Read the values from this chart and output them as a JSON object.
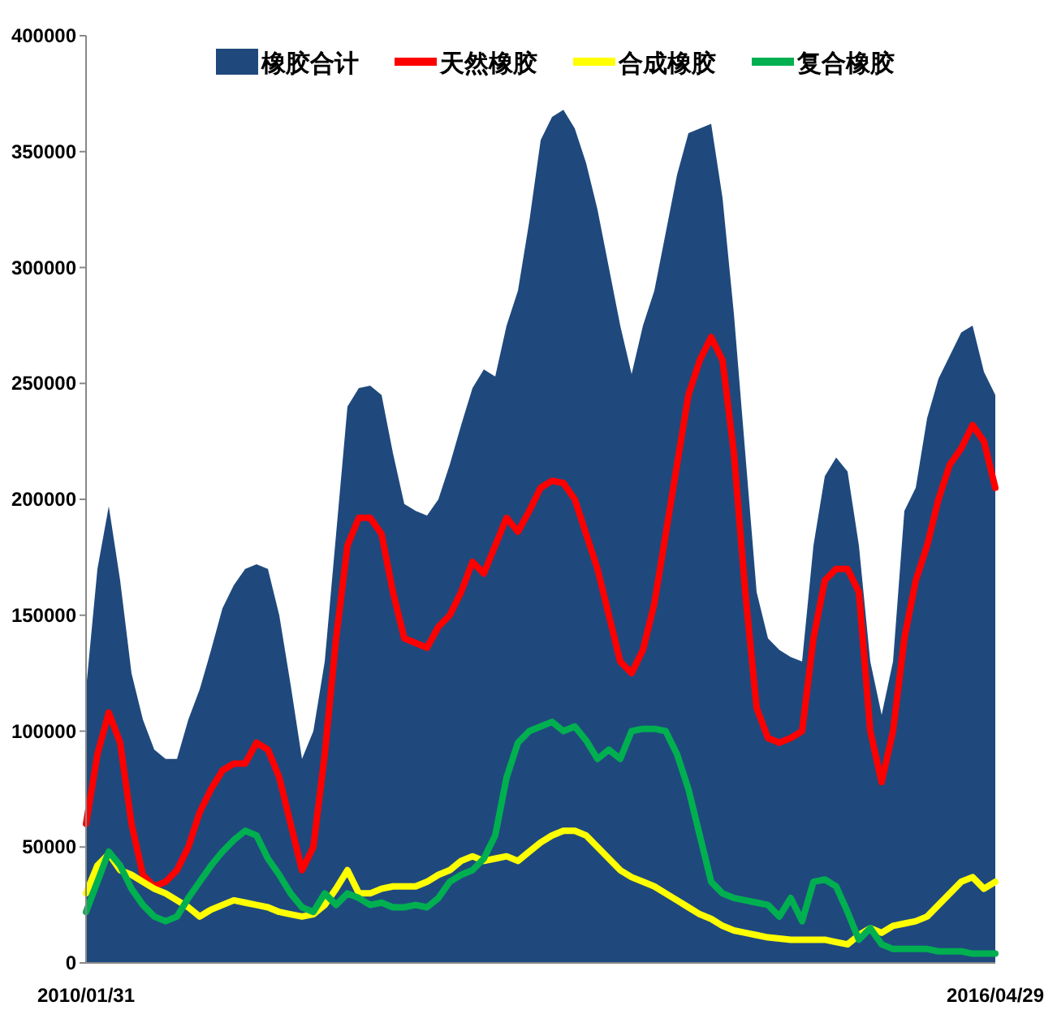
{
  "chart_data": {
    "type": "line",
    "legend": "top",
    "categories": [
      "2010/01/31",
      null,
      null,
      null,
      null,
      null,
      null,
      null,
      null,
      null,
      null,
      null,
      null,
      null,
      null,
      null,
      null,
      null,
      null,
      null,
      null,
      null,
      null,
      null,
      null,
      null,
      null,
      null,
      null,
      null,
      null,
      null,
      null,
      null,
      null,
      null,
      null,
      null,
      null,
      null,
      null,
      null,
      null,
      null,
      null,
      null,
      null,
      null,
      null,
      null,
      null,
      null,
      null,
      null,
      null,
      null,
      null,
      null,
      null,
      null,
      null,
      null,
      null,
      null,
      null,
      null,
      null,
      null,
      null,
      null,
      null,
      null,
      null,
      null,
      null,
      null,
      null,
      null,
      null,
      null,
      "2016/04/29"
    ],
    "ylim": [
      0,
      400000
    ],
    "yticks": [
      0,
      50000,
      100000,
      150000,
      200000,
      250000,
      300000,
      350000,
      400000
    ],
    "series": [
      {
        "name": "橡胶合计",
        "type": "area",
        "color": "#1f497d",
        "values": [
          118000,
          170000,
          197000,
          165000,
          125000,
          105000,
          92000,
          88000,
          88000,
          105000,
          118000,
          135000,
          153000,
          163000,
          170000,
          172000,
          170000,
          150000,
          120000,
          88000,
          100000,
          130000,
          185000,
          240000,
          248000,
          249000,
          245000,
          220000,
          198000,
          195000,
          193000,
          200000,
          215000,
          232000,
          248000,
          256000,
          253000,
          275000,
          290000,
          320000,
          355000,
          365000,
          368000,
          360000,
          345000,
          325000,
          300000,
          275000,
          254000,
          275000,
          290000,
          315000,
          340000,
          358000,
          360000,
          362000,
          330000,
          280000,
          220000,
          160000,
          140000,
          135000,
          132000,
          130000,
          180000,
          210000,
          218000,
          212000,
          180000,
          130000,
          107000,
          130000,
          195000,
          205000,
          235000,
          252000,
          262000,
          272000,
          275000,
          255000,
          245000
        ]
      },
      {
        "name": "天然橡胶",
        "color": "#ff0000",
        "values": [
          60000,
          90000,
          108000,
          95000,
          60000,
          38000,
          33000,
          35000,
          40000,
          50000,
          65000,
          75000,
          83000,
          86000,
          86000,
          95000,
          92000,
          80000,
          60000,
          40000,
          50000,
          90000,
          140000,
          180000,
          192000,
          192000,
          185000,
          160000,
          140000,
          138000,
          136000,
          145000,
          150000,
          160000,
          173000,
          168000,
          180000,
          192000,
          186000,
          195000,
          205000,
          208000,
          207000,
          200000,
          185000,
          170000,
          150000,
          130000,
          125000,
          135000,
          155000,
          185000,
          215000,
          245000,
          260000,
          270000,
          260000,
          220000,
          160000,
          110000,
          97000,
          95000,
          97000,
          100000,
          140000,
          165000,
          170000,
          170000,
          160000,
          100000,
          78000,
          100000,
          140000,
          165000,
          180000,
          200000,
          215000,
          222000,
          232000,
          225000,
          205000
        ]
      },
      {
        "name": "合成橡胶",
        "color": "#ffff00",
        "values": [
          30000,
          42000,
          47000,
          40000,
          38000,
          35000,
          32000,
          30000,
          27000,
          24000,
          20000,
          23000,
          25000,
          27000,
          26000,
          25000,
          24000,
          22000,
          21000,
          20000,
          21000,
          25000,
          32000,
          40000,
          30000,
          30000,
          32000,
          33000,
          33000,
          33000,
          35000,
          38000,
          40000,
          44000,
          46000,
          44000,
          45000,
          46000,
          44000,
          48000,
          52000,
          55000,
          57000,
          57000,
          55000,
          50000,
          45000,
          40000,
          37000,
          35000,
          33000,
          30000,
          27000,
          24000,
          21000,
          19000,
          16000,
          14000,
          13000,
          12000,
          11000,
          10500,
          10000,
          10000,
          10000,
          10000,
          9000,
          8000,
          12000,
          15000,
          13000,
          16000,
          17000,
          18000,
          20000,
          25000,
          30000,
          35000,
          37000,
          32000,
          35000
        ]
      },
      {
        "name": "复合橡胶",
        "color": "#00b050",
        "values": [
          22000,
          35000,
          48000,
          42000,
          32000,
          25000,
          20000,
          18000,
          20000,
          28000,
          35000,
          42000,
          48000,
          53000,
          57000,
          55000,
          45000,
          38000,
          30000,
          24000,
          22000,
          30000,
          25000,
          30000,
          28000,
          25000,
          26000,
          24000,
          24000,
          25000,
          24000,
          28000,
          35000,
          38000,
          40000,
          45000,
          55000,
          80000,
          95000,
          100000,
          102000,
          104000,
          100000,
          102000,
          96000,
          88000,
          92000,
          88000,
          100000,
          101000,
          101000,
          100000,
          90000,
          75000,
          55000,
          35000,
          30000,
          28000,
          27000,
          26000,
          25000,
          20000,
          28000,
          18000,
          35000,
          36000,
          33000,
          22000,
          10000,
          15000,
          8000,
          6000,
          6000,
          6000,
          6000,
          5000,
          5000,
          5000,
          4000,
          4000,
          4000
        ]
      }
    ]
  }
}
